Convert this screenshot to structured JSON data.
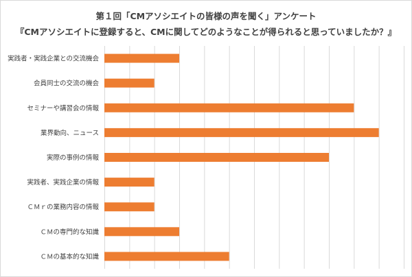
{
  "chart_data": {
    "type": "bar",
    "orientation": "horizontal",
    "title": "第１回「CMアソシエイトの皆様の声を聞く」アンケート",
    "subtitle": "『CMアソシエイトに登録すると、CMに関してどのようなことが得られると思っていましたか？』",
    "categories": [
      "実践者・実践企業との交流機会",
      "会員同士の交流の機会",
      "セミナーや講習会の情報",
      "業界動向、ニュース",
      "実際の事例の情報",
      "実践者、実践企業の情報",
      "ＣＭｒの業務内容の情報",
      "ＣＭの専門的な知識",
      "ＣＭの基本的な知識"
    ],
    "values": [
      3,
      2,
      10,
      11,
      9,
      2,
      2,
      3,
      5
    ],
    "xlim": [
      0,
      12
    ],
    "grid": "vertical",
    "legend": "none",
    "bar_color": "#ed7d31",
    "grid_color": "#d9d9d9"
  }
}
